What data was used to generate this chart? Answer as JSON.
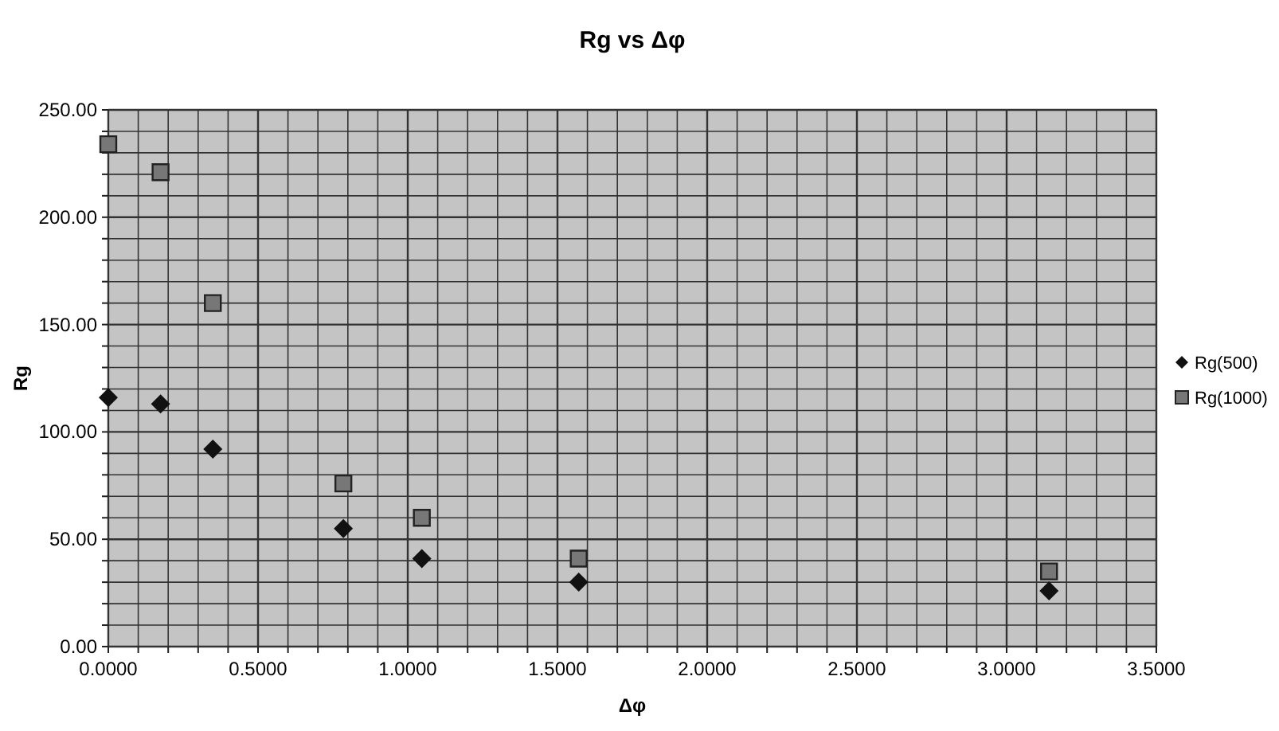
{
  "chart_data": {
    "type": "scatter",
    "title": "Rg vs Δφ",
    "xlabel": "Δφ",
    "ylabel": "Rg",
    "xlim": [
      0,
      3.5
    ],
    "ylim": [
      0,
      250
    ],
    "xticks": [
      {
        "value": 0,
        "label": "0.0000"
      },
      {
        "value": 0.1,
        "label": null
      },
      {
        "value": 0.2,
        "label": null
      },
      {
        "value": 0.3,
        "label": null
      },
      {
        "value": 0.4,
        "label": null
      },
      {
        "value": 0.5,
        "label": "0.5000"
      },
      {
        "value": 0.6,
        "label": null
      },
      {
        "value": 0.7,
        "label": null
      },
      {
        "value": 0.8,
        "label": null
      },
      {
        "value": 0.9,
        "label": null
      },
      {
        "value": 1,
        "label": "1.0000"
      },
      {
        "value": 1.1,
        "label": null
      },
      {
        "value": 1.2,
        "label": null
      },
      {
        "value": 1.3,
        "label": null
      },
      {
        "value": 1.4,
        "label": null
      },
      {
        "value": 1.5,
        "label": "1.5000"
      },
      {
        "value": 1.6,
        "label": null
      },
      {
        "value": 1.7,
        "label": null
      },
      {
        "value": 1.8,
        "label": null
      },
      {
        "value": 1.9,
        "label": null
      },
      {
        "value": 2,
        "label": "2.0000"
      },
      {
        "value": 2.1,
        "label": null
      },
      {
        "value": 2.2,
        "label": null
      },
      {
        "value": 2.3,
        "label": null
      },
      {
        "value": 2.4,
        "label": null
      },
      {
        "value": 2.5,
        "label": "2.5000"
      },
      {
        "value": 2.6,
        "label": null
      },
      {
        "value": 2.7,
        "label": null
      },
      {
        "value": 2.8,
        "label": null
      },
      {
        "value": 2.9,
        "label": null
      },
      {
        "value": 3,
        "label": "3.0000"
      },
      {
        "value": 3.1,
        "label": null
      },
      {
        "value": 3.2,
        "label": null
      },
      {
        "value": 3.3,
        "label": null
      },
      {
        "value": 3.4,
        "label": null
      },
      {
        "value": 3.5,
        "label": "3.5000"
      }
    ],
    "yticks": [
      {
        "value": 0,
        "label": "0.00"
      },
      {
        "value": 10,
        "label": null
      },
      {
        "value": 20,
        "label": null
      },
      {
        "value": 30,
        "label": null
      },
      {
        "value": 40,
        "label": null
      },
      {
        "value": 50,
        "label": "50.00"
      },
      {
        "value": 60,
        "label": null
      },
      {
        "value": 70,
        "label": null
      },
      {
        "value": 80,
        "label": null
      },
      {
        "value": 90,
        "label": null
      },
      {
        "value": 100,
        "label": "100.00"
      },
      {
        "value": 110,
        "label": null
      },
      {
        "value": 120,
        "label": null
      },
      {
        "value": 130,
        "label": null
      },
      {
        "value": 140,
        "label": null
      },
      {
        "value": 150,
        "label": "150.00"
      },
      {
        "value": 160,
        "label": null
      },
      {
        "value": 170,
        "label": null
      },
      {
        "value": 180,
        "label": null
      },
      {
        "value": 190,
        "label": null
      },
      {
        "value": 200,
        "label": "200.00"
      },
      {
        "value": 210,
        "label": null
      },
      {
        "value": 220,
        "label": null
      },
      {
        "value": 230,
        "label": null
      },
      {
        "value": 240,
        "label": null
      },
      {
        "value": 250,
        "label": "250.00"
      }
    ],
    "grid": true,
    "legend": "right",
    "x": [
      0,
      0.1745,
      0.349,
      0.785,
      1.047,
      1.571,
      3.1416
    ],
    "series": [
      {
        "name": "Rg(500)",
        "color": "#111111",
        "marker": "diamond",
        "values": [
          116,
          113,
          92,
          55,
          41,
          30,
          26
        ]
      },
      {
        "name": "Rg(1000)",
        "color": "#777777",
        "marker": "square",
        "values": [
          234,
          221,
          160,
          76,
          60,
          41,
          35
        ]
      }
    ]
  }
}
